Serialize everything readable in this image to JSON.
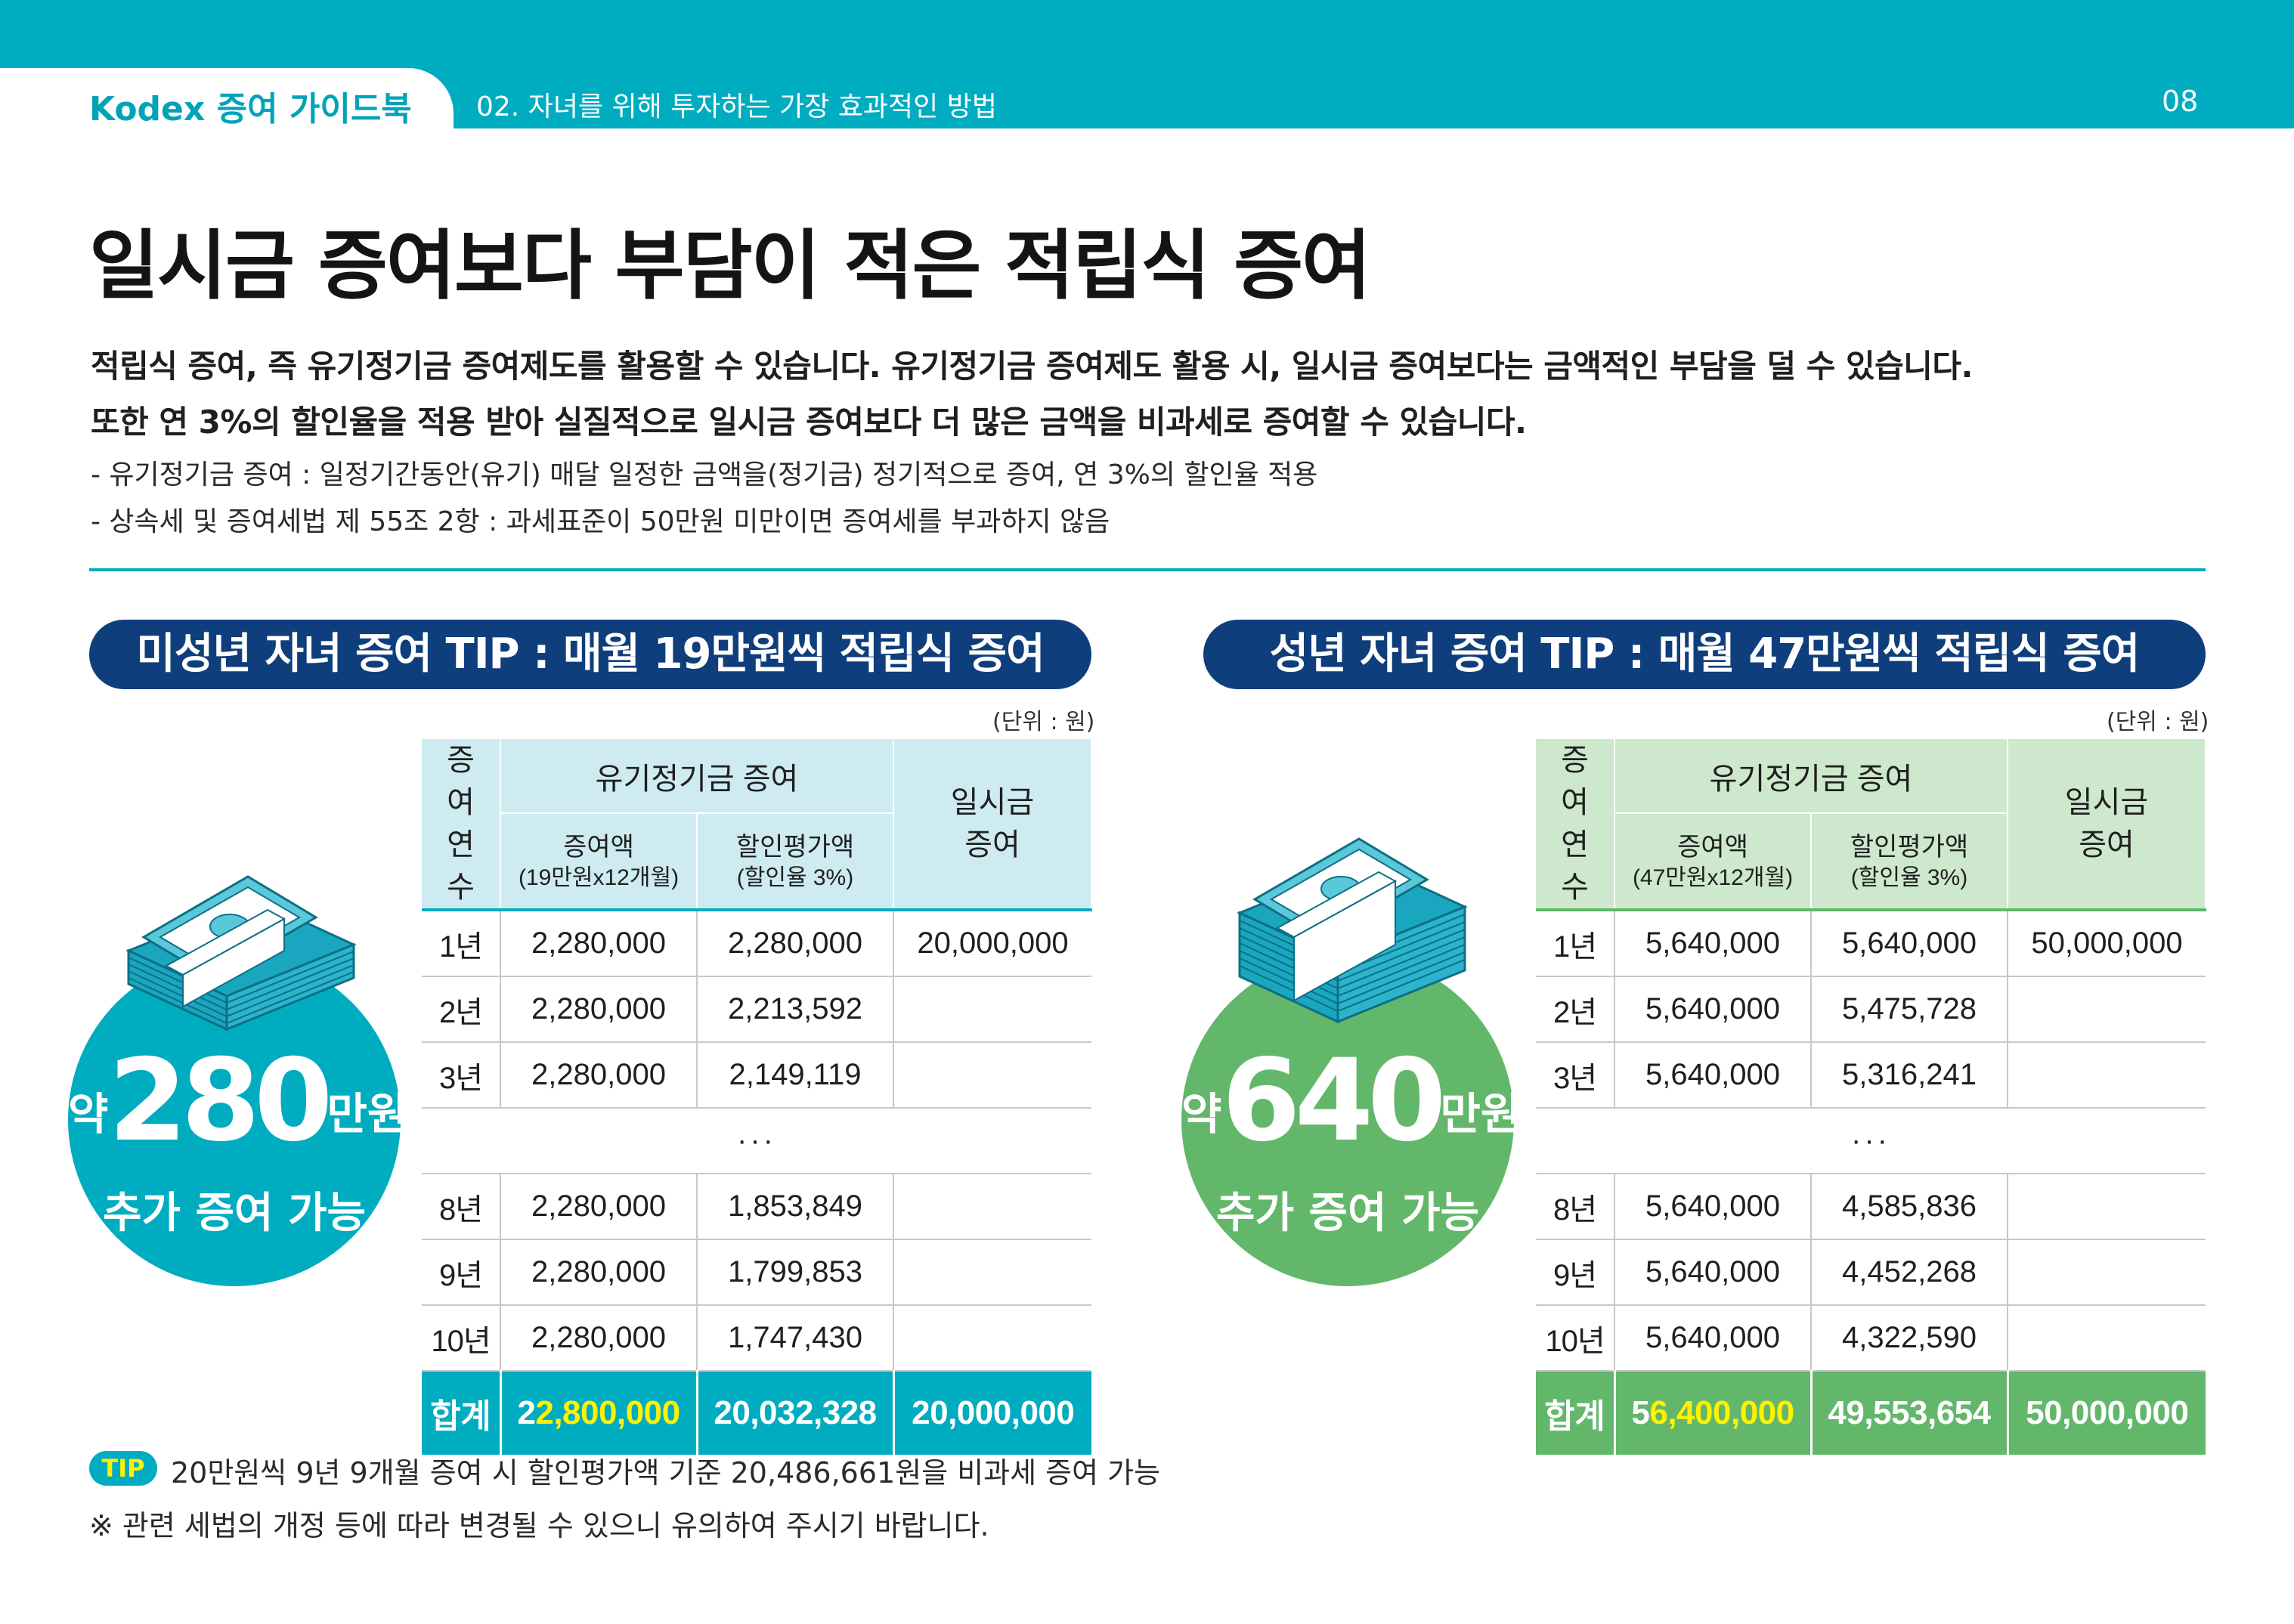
{
  "header": {
    "brand": "Kodex 증여 가이드북",
    "section": "02. 자녀를 위해 투자하는 가장 효과적인 방법",
    "page_number": "08"
  },
  "title": "일시금 증여보다 부담이 적은 적립식 증여",
  "intro": {
    "line1": "적립식 증여, 즉 유기정기금 증여제도를 활용할 수 있습니다. 유기정기금 증여제도 활용 시, 일시금 증여보다는 금액적인 부담을 덜 수 있습니다.",
    "line2": "또한 연 3%의 할인율을 적용 받아 실질적으로 일시금 증여보다 더 많은 금액을 비과세로 증여할 수 있습니다."
  },
  "notes": [
    "- 유기정기금 증여 : 일정기간동안(유기) 매달 일정한 금액을(정기금) 정기적으로 증여, 연 3%의 할인율 적용",
    "- 상속세 및 증여세법 제 55조 2항 : 과세표준이 50만원 미만이면 증여세를 부과하지 않음"
  ],
  "colors": {
    "teal": "#00acc0",
    "navy": "#0f3e7c",
    "green": "#63b76b",
    "yellow": "#fff200"
  },
  "minor": {
    "pill": "미성년 자녀 증여 TIP : 매월 19만원씩 적립식 증여",
    "unit": "(단위 : 원)",
    "circle": {
      "prefix": "약",
      "amount": "280",
      "suffix": "만원",
      "sub": "추가 증여 가능"
    },
    "icon": "money-stack-icon",
    "headers": {
      "year": "증여 연수",
      "annuity": "유기정기금 증여",
      "amount": "증여액",
      "amount_sub": "(19만원x12개월)",
      "discounted": "할인평가액",
      "discounted_sub": "(할인율 3%)",
      "lump": "일시금 증여"
    },
    "rows": [
      {
        "year": "1년",
        "amount": "2,280,000",
        "discounted": "2,280,000",
        "lump": "20,000,000"
      },
      {
        "year": "2년",
        "amount": "2,280,000",
        "discounted": "2,213,592",
        "lump": ""
      },
      {
        "year": "3년",
        "amount": "2,280,000",
        "discounted": "2,149,119",
        "lump": ""
      },
      {
        "year": "8년",
        "amount": "2,280,000",
        "discounted": "1,853,849",
        "lump": ""
      },
      {
        "year": "9년",
        "amount": "2,280,000",
        "discounted": "1,799,853",
        "lump": ""
      },
      {
        "year": "10년",
        "amount": "2,280,000",
        "discounted": "1,747,430",
        "lump": ""
      }
    ],
    "ellipsis": "···",
    "total": {
      "label": "합계",
      "amount_lead": "2",
      "amount_rest": "2,800,000",
      "discounted": "20,032,328",
      "lump": "20,000,000"
    }
  },
  "adult": {
    "pill": "성년 자녀 증여 TIP : 매월 47만원씩 적립식 증여",
    "unit": "(단위 : 원)",
    "circle": {
      "prefix": "약",
      "amount": "640",
      "suffix": "만원",
      "sub": "추가 증여 가능"
    },
    "icon": "money-stack-icon",
    "headers": {
      "year": "증여 연수",
      "annuity": "유기정기금 증여",
      "amount": "증여액",
      "amount_sub": "(47만원x12개월)",
      "discounted": "할인평가액",
      "discounted_sub": "(할인율 3%)",
      "lump": "일시금 증여"
    },
    "rows": [
      {
        "year": "1년",
        "amount": "5,640,000",
        "discounted": "5,640,000",
        "lump": "50,000,000"
      },
      {
        "year": "2년",
        "amount": "5,640,000",
        "discounted": "5,475,728",
        "lump": ""
      },
      {
        "year": "3년",
        "amount": "5,640,000",
        "discounted": "5,316,241",
        "lump": ""
      },
      {
        "year": "8년",
        "amount": "5,640,000",
        "discounted": "4,585,836",
        "lump": ""
      },
      {
        "year": "9년",
        "amount": "5,640,000",
        "discounted": "4,452,268",
        "lump": ""
      },
      {
        "year": "10년",
        "amount": "5,640,000",
        "discounted": "4,322,590",
        "lump": ""
      }
    ],
    "ellipsis": "···",
    "total": {
      "label": "합계",
      "amount_lead": "5",
      "amount_rest": "6,400,000",
      "discounted": "49,553,654",
      "lump": "50,000,000"
    }
  },
  "tip": {
    "badge": "TIP",
    "text": "20만원씩 9년 9개월 증여 시 할인평가액 기준 20,486,661원을 비과세 증여 가능"
  },
  "disclaimer": "※ 관련 세법의 개정 등에 따라 변경될 수 있으니 유의하여 주시기 바랍니다."
}
